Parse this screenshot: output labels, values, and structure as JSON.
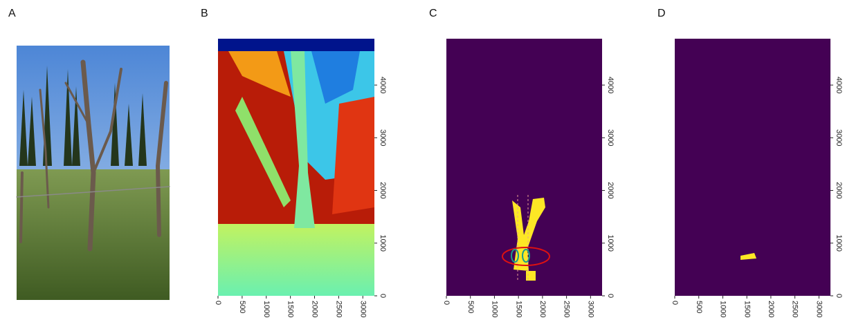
{
  "panels": [
    {
      "label": "A"
    },
    {
      "label": "B",
      "xlim": [
        0,
        3240
      ],
      "ylim": [
        0,
        4880
      ],
      "xticks": [
        0,
        500,
        1000,
        1500,
        2000,
        2500,
        3000
      ],
      "yticks": [
        0,
        1000,
        2000,
        3000,
        4000
      ]
    },
    {
      "label": "C",
      "xlim": [
        0,
        3240
      ],
      "ylim": [
        0,
        4880
      ],
      "xticks": [
        0,
        500,
        1000,
        1500,
        2000,
        2500,
        3000
      ],
      "yticks": [
        0,
        1000,
        2000,
        3000,
        4000
      ]
    },
    {
      "label": "D",
      "xlim": [
        0,
        3240
      ],
      "ylim": [
        0,
        4880
      ],
      "xticks": [
        0,
        500,
        1000,
        1500,
        2000,
        2500,
        3000
      ],
      "yticks": [
        0,
        1000,
        2000,
        3000,
        4000
      ]
    }
  ]
}
